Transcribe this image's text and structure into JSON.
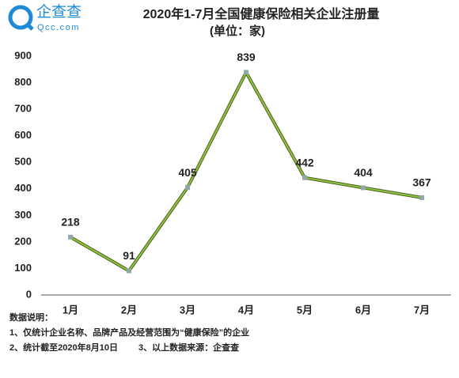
{
  "logo": {
    "name": "企查查",
    "domain": "Qcc.com"
  },
  "chart_data": {
    "type": "line",
    "title": "2020年1-7月全国健康保险相关企业注册量",
    "subtitle": "(单位：家)",
    "categories": [
      "1月",
      "2月",
      "3月",
      "4月",
      "5月",
      "6月",
      "7月"
    ],
    "values": [
      218,
      91,
      405,
      839,
      442,
      404,
      367
    ],
    "color": "#8dc63f",
    "outline_color": "#4d5e1e",
    "marker_color": "#8fa8a8",
    "ylim": [
      0,
      900
    ],
    "yticks": [
      0,
      100,
      200,
      300,
      400,
      500,
      600,
      700,
      800,
      900
    ],
    "grid": false
  },
  "notes": [
    "数据说明：",
    "1、仅统计企业名称、品牌产品及经营范围为“健康保险”的企业",
    "2、统计截至2020年8月10日",
    "3、以上数据来源：企查查"
  ]
}
